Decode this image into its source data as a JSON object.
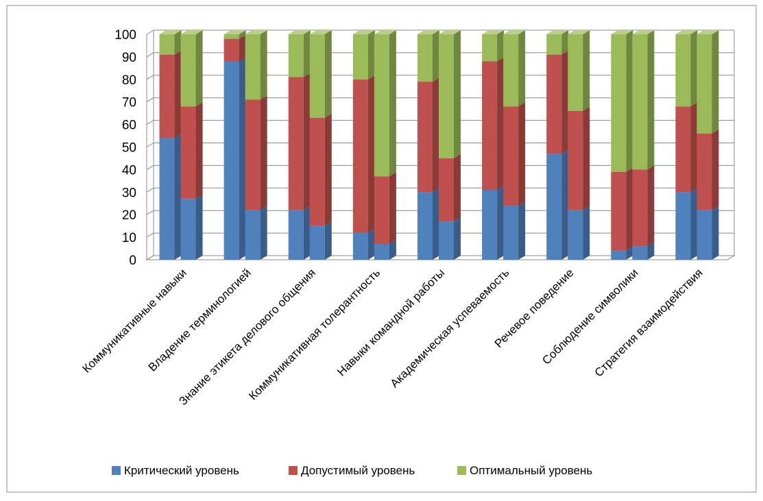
{
  "chart_data": {
    "type": "bar",
    "stacked": true,
    "three_d": true,
    "categories": [
      "Коммуникативные навыки",
      "Владение терминологией",
      "Знание этикета делового общения",
      "Коммуникативная толерантность",
      "Навыки командной работы",
      "Академическая успеваемость",
      "Речевое поведение",
      "Соблюдение символики",
      "Стратегия взаимодействия"
    ],
    "bars_per_category": 2,
    "series": [
      {
        "name": "Критический уровень",
        "color": "#4F81BD",
        "values": [
          [
            54,
            27
          ],
          [
            88,
            22
          ],
          [
            22,
            15
          ],
          [
            12,
            7
          ],
          [
            30,
            17
          ],
          [
            31,
            24
          ],
          [
            47,
            22
          ],
          [
            4,
            6
          ],
          [
            30,
            22
          ]
        ]
      },
      {
        "name": "Допустимый уровень",
        "color": "#C0504D",
        "values": [
          [
            37,
            41
          ],
          [
            10,
            49
          ],
          [
            59,
            48
          ],
          [
            68,
            30
          ],
          [
            49,
            28
          ],
          [
            57,
            44
          ],
          [
            44,
            44
          ],
          [
            35,
            34
          ],
          [
            38,
            34
          ]
        ]
      },
      {
        "name": "Оптимальный уровень",
        "color": "#9BBB59",
        "values": [
          [
            9,
            32
          ],
          [
            2,
            29
          ],
          [
            19,
            37
          ],
          [
            20,
            63
          ],
          [
            21,
            55
          ],
          [
            12,
            32
          ],
          [
            9,
            34
          ],
          [
            61,
            60
          ],
          [
            32,
            44
          ]
        ]
      }
    ],
    "ylim": [
      0,
      100
    ],
    "yticks": [
      "0",
      "10",
      "20",
      "30",
      "40",
      "50",
      "60",
      "70",
      "80",
      "90",
      "100"
    ],
    "grid": true,
    "legend_position": "bottom"
  }
}
